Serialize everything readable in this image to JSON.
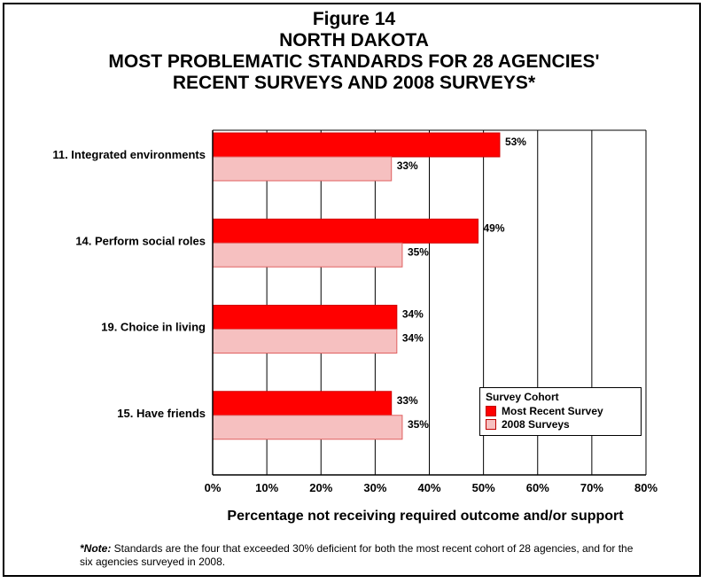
{
  "title": {
    "line1": "Figure 14",
    "line2": "NORTH DAKOTA",
    "line3": "MOST PROBLEMATIC STANDARDS FOR 28 AGENCIES'",
    "line4": "RECENT SURVEYS AND 2008 SURVEYS*"
  },
  "chart_data": {
    "type": "bar",
    "orientation": "horizontal",
    "categories": [
      "11. Integrated environments",
      "14. Perform social roles",
      "19. Choice in living",
      "15. Have friends"
    ],
    "series": [
      {
        "name": "Most Recent Survey",
        "values": [
          53,
          49,
          34,
          33
        ],
        "labels": [
          "53%",
          "49%",
          "34%",
          "33%"
        ],
        "color": "#ff0000"
      },
      {
        "name": "2008 Surveys",
        "values": [
          33,
          35,
          34,
          35
        ],
        "labels": [
          "33%",
          "35%",
          "34%",
          "35%"
        ],
        "color": "#f6c0c0"
      }
    ],
    "xlim": [
      0,
      80
    ],
    "xticks": [
      "0%",
      "10%",
      "20%",
      "30%",
      "40%",
      "50%",
      "60%",
      "70%",
      "80%"
    ],
    "xlabel": "Percentage not receiving required outcome and/or support",
    "grid": "vertical",
    "legend_title": "Survey Cohort",
    "legend_position": "lower-right"
  },
  "footnote": {
    "lead": "*Note:",
    "text": " Standards are the four that exceeded 30% deficient for both the most recent cohort of 28 agencies, and for the six agencies surveyed in 2008."
  }
}
